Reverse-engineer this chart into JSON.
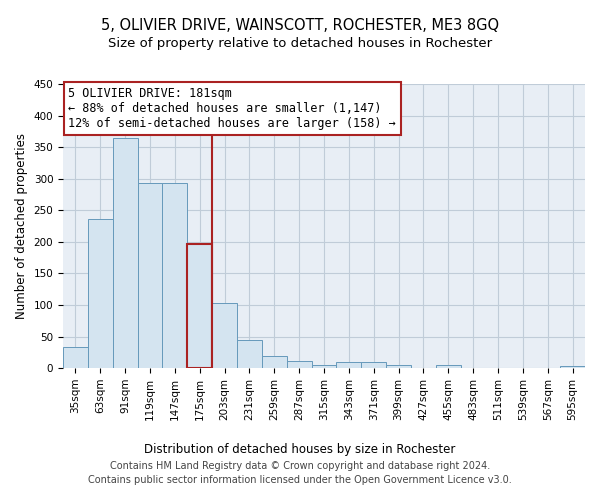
{
  "title": "5, OLIVIER DRIVE, WAINSCOTT, ROCHESTER, ME3 8GQ",
  "subtitle": "Size of property relative to detached houses in Rochester",
  "xlabel": "Distribution of detached houses by size in Rochester",
  "ylabel": "Number of detached properties",
  "categories": [
    "35sqm",
    "63sqm",
    "91sqm",
    "119sqm",
    "147sqm",
    "175sqm",
    "203sqm",
    "231sqm",
    "259sqm",
    "287sqm",
    "315sqm",
    "343sqm",
    "371sqm",
    "399sqm",
    "427sqm",
    "455sqm",
    "483sqm",
    "511sqm",
    "539sqm",
    "567sqm",
    "595sqm"
  ],
  "values": [
    33,
    236,
    365,
    293,
    293,
    197,
    103,
    44,
    20,
    11,
    5,
    10,
    10,
    5,
    0,
    5,
    0,
    0,
    0,
    0,
    4
  ],
  "bar_color": "#d4e4f0",
  "bar_edge_color": "#6699bb",
  "highlight_index": 5,
  "highlight_edge_color": "#aa2222",
  "vline_color": "#aa2222",
  "annotation_box_text": "5 OLIVIER DRIVE: 181sqm\n← 88% of detached houses are smaller (1,147)\n12% of semi-detached houses are larger (158) →",
  "box_edge_color": "#aa2222",
  "ylim": [
    0,
    450
  ],
  "yticks": [
    0,
    50,
    100,
    150,
    200,
    250,
    300,
    350,
    400,
    450
  ],
  "footer_line1": "Contains HM Land Registry data © Crown copyright and database right 2024.",
  "footer_line2": "Contains public sector information licensed under the Open Government Licence v3.0.",
  "background_color": "#e8eef5",
  "grid_color": "#c0ccd8",
  "title_fontsize": 10.5,
  "subtitle_fontsize": 9.5,
  "axis_label_fontsize": 8.5,
  "tick_fontsize": 7.5,
  "annotation_fontsize": 8.5,
  "footer_fontsize": 7
}
